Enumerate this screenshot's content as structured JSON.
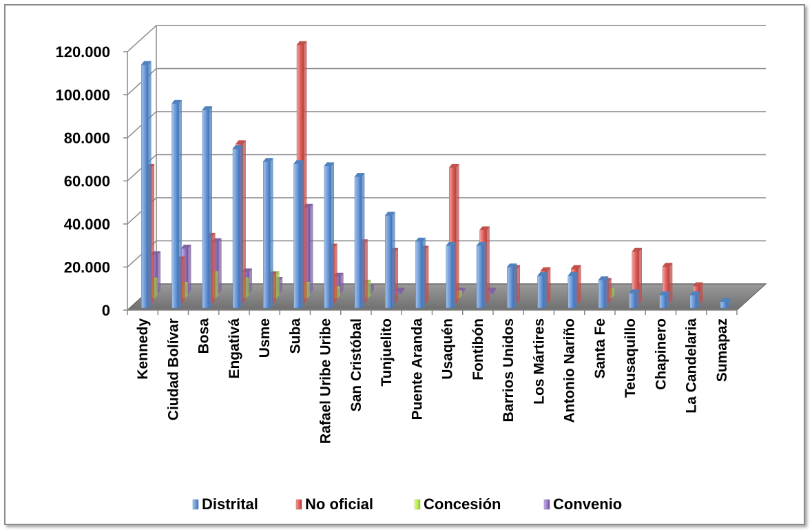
{
  "chart_data": {
    "type": "bar",
    "categories": [
      "Kennedy",
      "Ciudad Bolívar",
      "Bosa",
      "Engativá",
      "Usme",
      "Suba",
      "Rafael Uribe Uribe",
      "San Cristóbal",
      "Tunjuelito",
      "Puente Aranda",
      "Usaquén",
      "Fontibón",
      "Barrios Unidos",
      "Los Mártires",
      "Antonio Nariño",
      "Santa Fe",
      "Teusaquillo",
      "Chapinero",
      "La Candelaria",
      "Sumapaz"
    ],
    "series": [
      {
        "name": "Distrital",
        "color": "#4f81bd",
        "values": [
          113000,
          95000,
          92000,
          74000,
          68000,
          67000,
          66000,
          61000,
          43000,
          31000,
          29000,
          29000,
          19000,
          15000,
          15000,
          13000,
          7000,
          6000,
          6000,
          3000
        ]
      },
      {
        "name": "No oficial",
        "color": "#c0504d",
        "values": [
          63000,
          20000,
          31000,
          74000,
          13000,
          120000,
          26000,
          28000,
          24000,
          25000,
          63000,
          34000,
          16000,
          15000,
          16000,
          10000,
          24000,
          17000,
          8000,
          0
        ]
      },
      {
        "name": "Concesión",
        "color": "#9bbb59",
        "values": [
          8000,
          6000,
          11000,
          8000,
          11000,
          6000,
          4000,
          7000,
          0,
          0,
          2000,
          0,
          0,
          0,
          0,
          3000,
          0,
          0,
          0,
          0
        ]
      },
      {
        "name": "Convenio",
        "color": "#8064a2",
        "values": [
          18000,
          21000,
          24000,
          10000,
          6000,
          40000,
          8000,
          3000,
          1000,
          0,
          1000,
          1000,
          0,
          0,
          0,
          0,
          0,
          0,
          0,
          0
        ]
      }
    ],
    "y_ticks": [
      "0",
      "20.000",
      "40.000",
      "60.000",
      "80.000",
      "100.000",
      "120.000"
    ],
    "ylim": [
      0,
      120000
    ],
    "grid": true,
    "legend": "bottom",
    "style": "3d-clustered-column"
  }
}
